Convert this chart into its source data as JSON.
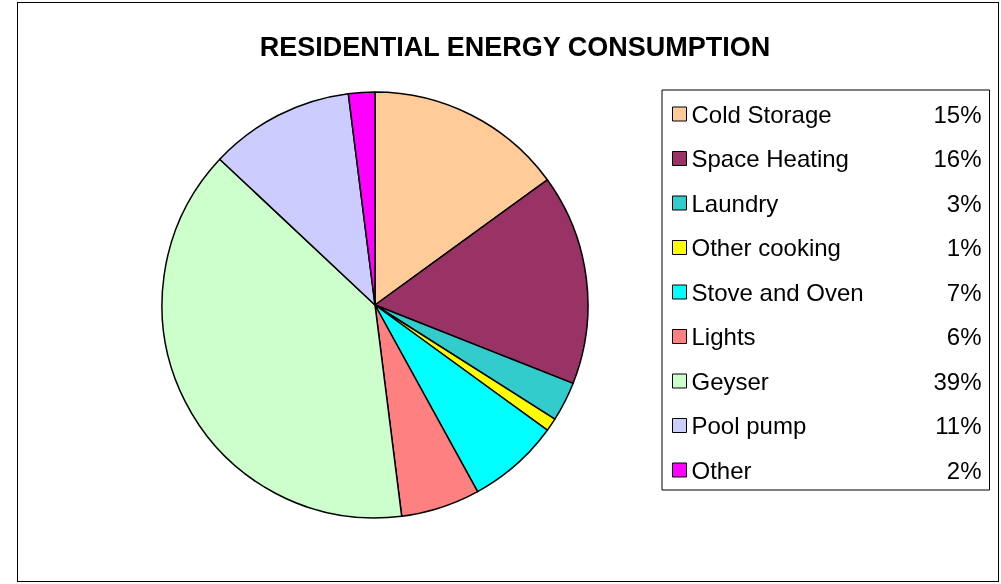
{
  "chart_data": {
    "type": "pie",
    "title": "RESIDENTIAL ENERGY CONSUMPTION",
    "categories": [
      "Cold Storage",
      "Space Heating",
      "Laundry",
      "Other cooking",
      "Stove and Oven",
      "Lights",
      "Geyser",
      "Pool pump",
      "Other"
    ],
    "values": [
      15,
      16,
      3,
      1,
      7,
      6,
      39,
      11,
      2
    ],
    "value_labels": [
      "15%",
      "16%",
      "3%",
      "1%",
      "7%",
      "6%",
      "39%",
      "11%",
      "2%"
    ],
    "colors": [
      "#ffcc99",
      "#993366",
      "#33cccc",
      "#ffff00",
      "#00ffff",
      "#ff8080",
      "#ccffcc",
      "#ccccff",
      "#ff00ff"
    ],
    "legend": "right"
  }
}
